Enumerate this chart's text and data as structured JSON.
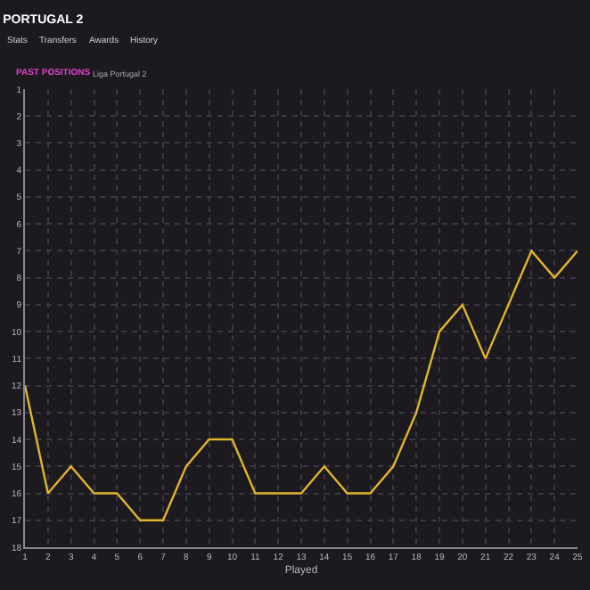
{
  "chart_data": {
    "type": "line",
    "title": "PORTUGAL 2",
    "annotations": [
      "Stats",
      "Transfers",
      "Awards",
      "History",
      "PAST POSITIONS",
      "Liga Portugal 2"
    ],
    "xlabel": "Played",
    "x": [
      1,
      2,
      3,
      4,
      5,
      6,
      7,
      8,
      9,
      10,
      11,
      12,
      13,
      14,
      15,
      16,
      17,
      18,
      19,
      20,
      21,
      22,
      23,
      24,
      25
    ],
    "series": [
      {
        "color": "#e0b52c",
        "values": [
          12,
          16,
          15,
          16,
          16,
          17,
          17,
          15,
          14,
          14,
          16,
          16,
          16,
          15,
          16,
          16,
          15,
          13,
          10,
          9,
          11,
          9,
          7,
          8,
          7
        ]
      }
    ],
    "xlim": [
      1,
      25
    ],
    "xticks": [
      1,
      2,
      3,
      4,
      5,
      6,
      7,
      8,
      9,
      10,
      11,
      12,
      13,
      14,
      15,
      16,
      17,
      18,
      19,
      20,
      21,
      22,
      23,
      24,
      25
    ],
    "ylim": [
      18,
      1
    ],
    "yticks": [
      1,
      2,
      3,
      4,
      5,
      6,
      7,
      8,
      9,
      10,
      11,
      12,
      13,
      14,
      15,
      16,
      17,
      18
    ],
    "grid": true,
    "legend": false,
    "marker": "none",
    "line_style": "solid"
  }
}
